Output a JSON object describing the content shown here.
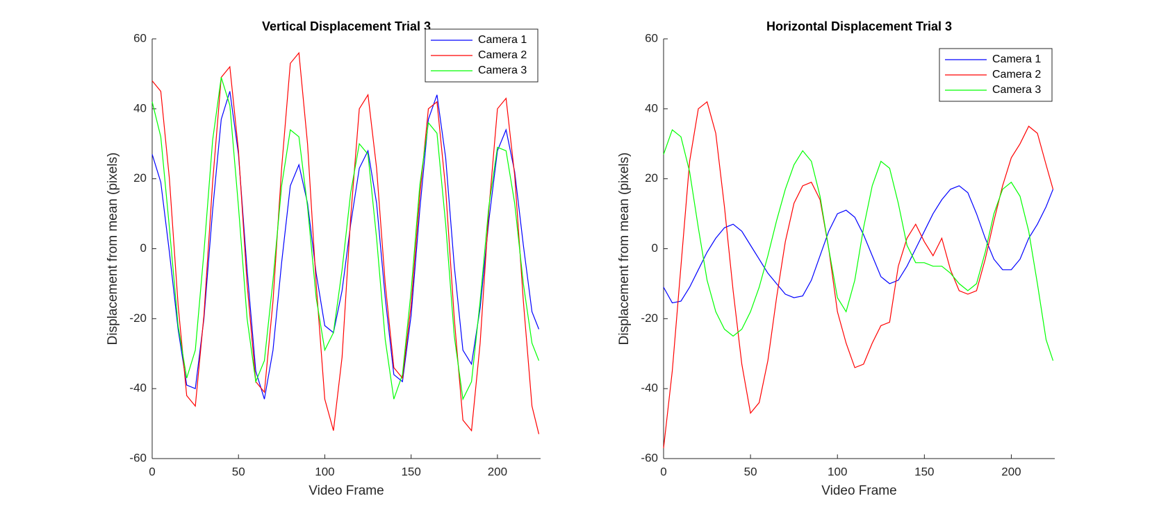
{
  "chart_data": [
    {
      "type": "line",
      "title": "Vertical Displacement Trial 3",
      "xlabel": "Video Frame",
      "ylabel": "Displacement from mean (pixels)",
      "x": [
        0,
        5,
        10,
        15,
        20,
        25,
        30,
        35,
        40,
        45,
        50,
        55,
        60,
        65,
        70,
        75,
        80,
        85,
        90,
        95,
        100,
        105,
        110,
        115,
        120,
        125,
        130,
        135,
        140,
        145,
        150,
        155,
        160,
        165,
        170,
        175,
        180,
        185,
        190,
        195,
        200,
        205,
        210,
        215,
        220,
        224
      ],
      "series": [
        {
          "name": "Camera 1",
          "color": "#0000ff",
          "values": [
            27,
            19,
            -1,
            -23,
            -39,
            -40,
            -20,
            11,
            37,
            45,
            27,
            -6,
            -35,
            -43,
            -29,
            -4,
            18,
            24,
            13,
            -7,
            -22,
            -24,
            -12,
            7,
            23,
            28,
            13,
            -14,
            -36,
            -38,
            -19,
            11,
            37,
            44,
            26,
            -5,
            -29,
            -33,
            -17,
            8,
            28,
            34,
            22,
            1,
            -18,
            -23
          ]
        },
        {
          "name": "Camera 2",
          "color": "#ff0000",
          "values": [
            48,
            45,
            20,
            -16,
            -42,
            -45,
            -19,
            19,
            49,
            52,
            28,
            -10,
            -38,
            -41,
            -15,
            23,
            53,
            56,
            30,
            -10,
            -43,
            -52,
            -31,
            9,
            40,
            44,
            23,
            -10,
            -34,
            -37,
            -16,
            15,
            40,
            42,
            17,
            -20,
            -49,
            -52,
            -27,
            11,
            40,
            43,
            21,
            -15,
            -45,
            -53
          ]
        },
        {
          "name": "Camera 3",
          "color": "#00ff00",
          "values": [
            42,
            32,
            6,
            -22,
            -37,
            -29,
            -1,
            31,
            49,
            41,
            12,
            -20,
            -38,
            -32,
            -9,
            18,
            34,
            32,
            12,
            -14,
            -29,
            -24,
            -6,
            16,
            30,
            27,
            3,
            -26,
            -43,
            -36,
            -12,
            18,
            36,
            33,
            7,
            -25,
            -43,
            -38,
            -15,
            12,
            29,
            28,
            13,
            -10,
            -27,
            -32
          ]
        }
      ],
      "xlim": [
        0,
        225
      ],
      "ylim": [
        -60,
        60
      ],
      "xticks": [
        0,
        50,
        100,
        150,
        200
      ],
      "yticks": [
        -60,
        -40,
        -20,
        0,
        20,
        40,
        60
      ],
      "grid": false,
      "legend": "northeast"
    },
    {
      "type": "line",
      "title": "Horizontal Displacement Trial 3",
      "xlabel": "Video Frame",
      "ylabel": "Displacement from mean (pixels)",
      "x": [
        0,
        5,
        10,
        15,
        20,
        25,
        30,
        35,
        40,
        45,
        50,
        55,
        60,
        65,
        70,
        75,
        80,
        85,
        90,
        95,
        100,
        105,
        110,
        115,
        120,
        125,
        130,
        135,
        140,
        145,
        150,
        155,
        160,
        165,
        170,
        175,
        180,
        185,
        190,
        195,
        200,
        205,
        210,
        215,
        220,
        224
      ],
      "series": [
        {
          "name": "Camera 1",
          "color": "#0000ff",
          "values": [
            -11,
            -15.5,
            -15,
            -11,
            -6,
            -1,
            3,
            6,
            7,
            5,
            1,
            -3,
            -7,
            -10,
            -13,
            -14,
            -13.5,
            -9,
            -2,
            5,
            10,
            11,
            9,
            4,
            -2,
            -8,
            -10,
            -9,
            -5,
            0,
            5,
            10,
            14,
            17,
            18,
            16,
            10,
            3,
            -3,
            -6,
            -6,
            -3,
            3,
            7,
            12,
            17
          ]
        },
        {
          "name": "Camera 2",
          "color": "#ff0000",
          "values": [
            -57,
            -35,
            -5,
            25,
            40,
            42,
            33,
            12,
            -12,
            -33,
            -47,
            -44,
            -32,
            -14,
            2,
            13,
            18,
            19,
            14,
            0,
            -18,
            -27,
            -34,
            -33,
            -27,
            -22,
            -21,
            -5,
            3,
            7,
            2,
            -2,
            3,
            -6,
            -12,
            -13,
            -12,
            -3,
            8,
            18,
            26,
            30,
            35,
            33,
            24,
            17
          ]
        },
        {
          "name": "Camera 3",
          "color": "#00ff00",
          "values": [
            27,
            34,
            32,
            22,
            6,
            -9,
            -18,
            -23,
            -25,
            -23,
            -18,
            -11,
            -2,
            8,
            17,
            24,
            28,
            25,
            15,
            0,
            -14,
            -18,
            -9,
            6,
            18,
            25,
            23,
            13,
            1,
            -4,
            -4,
            -5,
            -5,
            -7,
            -10,
            -12,
            -10,
            -1,
            10,
            17,
            19,
            15,
            5,
            -10,
            -26,
            -32
          ]
        }
      ],
      "xlim": [
        0,
        225
      ],
      "ylim": [
        -60,
        60
      ],
      "xticks": [
        0,
        50,
        100,
        150,
        200
      ],
      "yticks": [
        -60,
        -40,
        -20,
        0,
        20,
        40,
        60
      ],
      "grid": false,
      "legend": "northeast"
    }
  ]
}
